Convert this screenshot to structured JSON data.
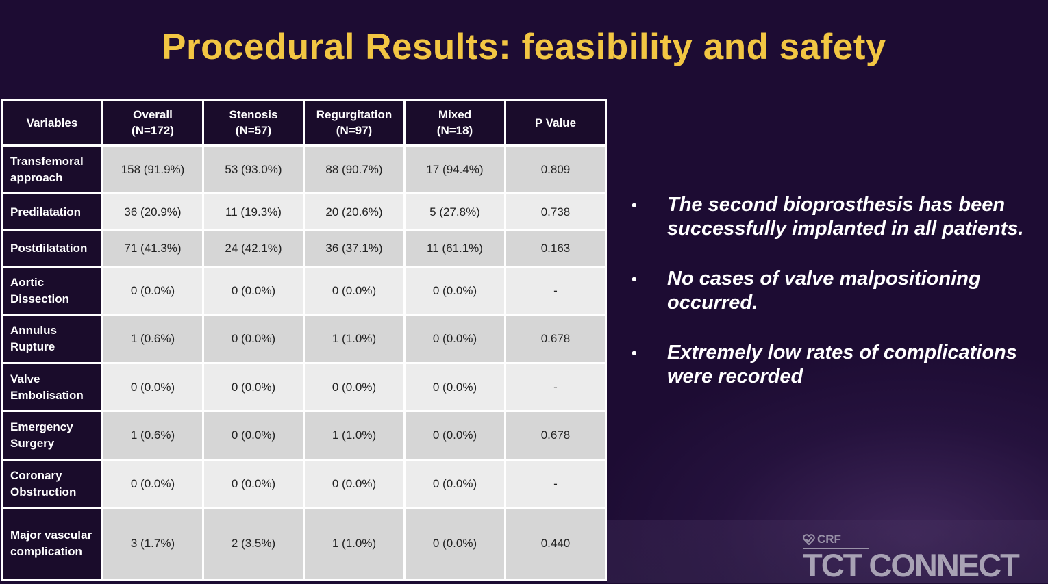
{
  "title": "Procedural Results: feasibility and safety",
  "table": {
    "headers": [
      {
        "line1": "Variables",
        "line2": ""
      },
      {
        "line1": "Overall",
        "line2": "(N=172)"
      },
      {
        "line1": "Stenosis",
        "line2": "(N=57)"
      },
      {
        "line1": "Regurgitation",
        "line2": "(N=97)"
      },
      {
        "line1": "Mixed",
        "line2": "(N=18)"
      },
      {
        "line1": "P Value",
        "line2": ""
      }
    ],
    "rows": [
      {
        "variable_l1": "Transfemoral",
        "variable_l2": "approach",
        "overall": "158 (91.9%)",
        "stenosis": "53 (93.0%)",
        "regurgitation": "88 (90.7%)",
        "mixed": "17 (94.4%)",
        "p_value": "0.809"
      },
      {
        "variable_l1": "Predilatation",
        "variable_l2": "",
        "overall": "36 (20.9%)",
        "stenosis": "11 (19.3%)",
        "regurgitation": "20 (20.6%)",
        "mixed": "5 (27.8%)",
        "p_value": "0.738"
      },
      {
        "variable_l1": "Postdilatation",
        "variable_l2": "",
        "overall": "71 (41.3%)",
        "stenosis": "24 (42.1%)",
        "regurgitation": "36 (37.1%)",
        "mixed": "11 (61.1%)",
        "p_value": "0.163"
      },
      {
        "variable_l1": "Aortic",
        "variable_l2": "Dissection",
        "overall": "0 (0.0%)",
        "stenosis": "0 (0.0%)",
        "regurgitation": "0 (0.0%)",
        "mixed": "0 (0.0%)",
        "p_value": "-"
      },
      {
        "variable_l1": "Annulus",
        "variable_l2": "Rupture",
        "overall": "1 (0.6%)",
        "stenosis": "0 (0.0%)",
        "regurgitation": "1 (1.0%)",
        "mixed": "0 (0.0%)",
        "p_value": "0.678"
      },
      {
        "variable_l1": "Valve",
        "variable_l2": "Embolisation",
        "overall": "0 (0.0%)",
        "stenosis": "0 (0.0%)",
        "regurgitation": "0 (0.0%)",
        "mixed": "0 (0.0%)",
        "p_value": "-"
      },
      {
        "variable_l1": "Emergency",
        "variable_l2": "Surgery",
        "overall": "1 (0.6%)",
        "stenosis": "0 (0.0%)",
        "regurgitation": "1 (1.0%)",
        "mixed": "0 (0.0%)",
        "p_value": "0.678"
      },
      {
        "variable_l1": "Coronary",
        "variable_l2": "Obstruction",
        "overall": "0 (0.0%)",
        "stenosis": "0 (0.0%)",
        "regurgitation": "0 (0.0%)",
        "mixed": "0 (0.0%)",
        "p_value": "-"
      },
      {
        "variable_l1": "Major vascular",
        "variable_l2": "complication",
        "overall": "3 (1.7%)",
        "stenosis": "2 (3.5%)",
        "regurgitation": "1 (1.0%)",
        "mixed": "0 (0.0%)",
        "p_value": "0.440"
      }
    ]
  },
  "bullets": [
    {
      "line1": "The second bioprosthesis has been",
      "line2": "successfully implanted in all patients."
    },
    {
      "line1": "No cases of valve malpositioning",
      "line2": "occurred."
    },
    {
      "line1": "Extremely low rates of complications",
      "line2": "were recorded"
    }
  ],
  "bullet_glyph": "•",
  "logo": {
    "crf": "CRF",
    "crf_icon": "crf-heart-icon",
    "brand": "TCT CONNECT"
  },
  "colors": {
    "background": "#1d0c33",
    "title": "#f2c643",
    "header_cell": "#1a0c2b",
    "row_shade": "#d6d6d6",
    "row_light": "#ececec"
  }
}
